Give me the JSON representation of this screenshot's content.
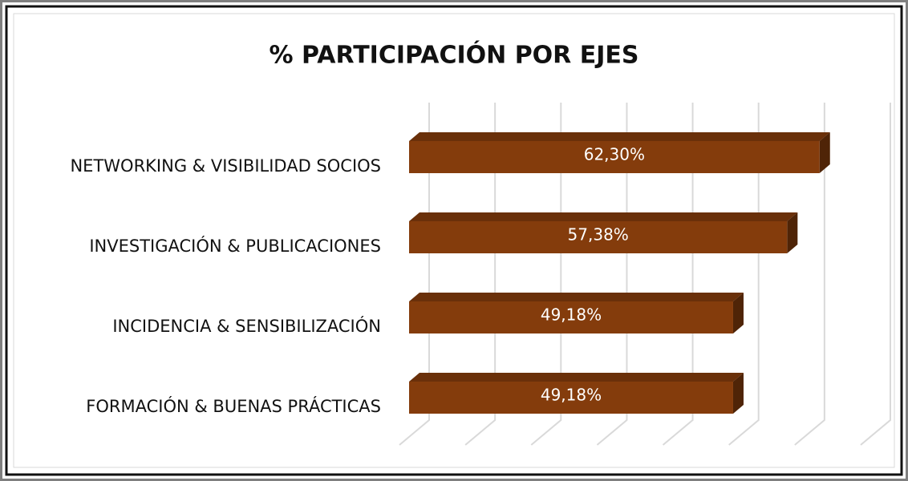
{
  "chart_data": {
    "type": "bar3d_horizontal",
    "title": "% PARTICIPACIÓN POR EJES",
    "categories": [
      "NETWORKING & VISIBILIDAD SOCIOS",
      "INVESTIGACIÓN & PUBLICACIONES",
      "INCIDENCIA & SENSIBILIZACIÓN",
      "FORMACIÓN & BUENAS PRÁCTICAS"
    ],
    "values": [
      62.3,
      57.38,
      49.18,
      49.18
    ],
    "value_labels": [
      "62,30%",
      "57,38%",
      "49,18%",
      "49,18%"
    ],
    "color": "#843c0c",
    "xlim": [
      0,
      70
    ],
    "xticks": [
      0,
      10,
      20,
      30,
      40,
      50,
      60,
      70
    ],
    "grid": true
  }
}
